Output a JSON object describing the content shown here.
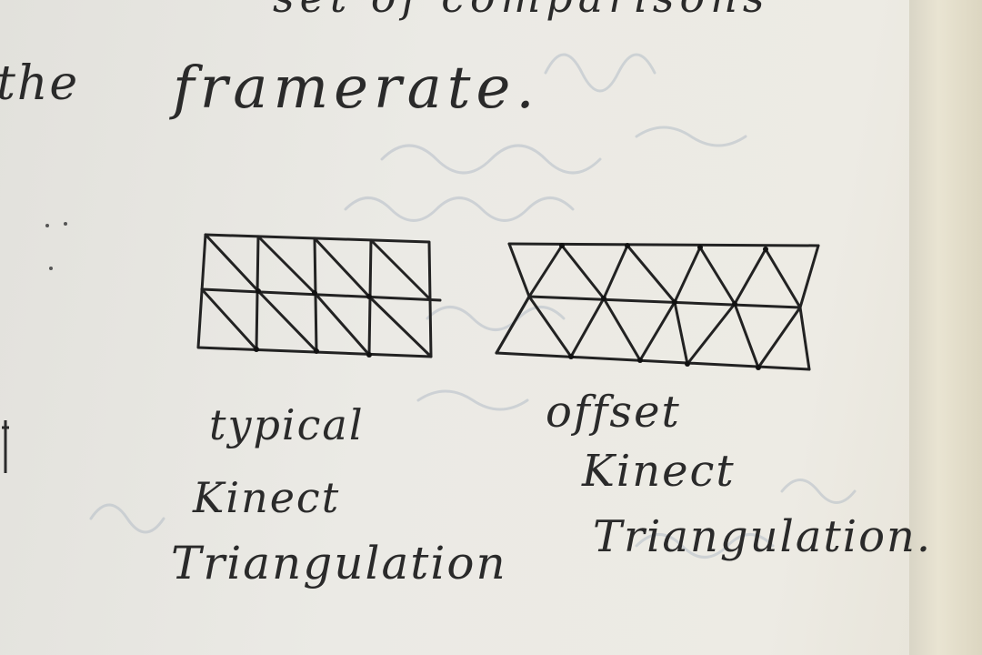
{
  "sketch": {
    "top_line": "set of comparisons",
    "word_the": "the",
    "word_framerate": "framerate.",
    "left_label": [
      "typical",
      "Kinect",
      "Triangulation"
    ],
    "right_label": [
      "offset",
      "Kinect",
      "Triangulation."
    ]
  },
  "colors": {
    "ink": "#2a2a2a",
    "paper": "#ebe9e2",
    "page_edge": "#e2ddca"
  }
}
